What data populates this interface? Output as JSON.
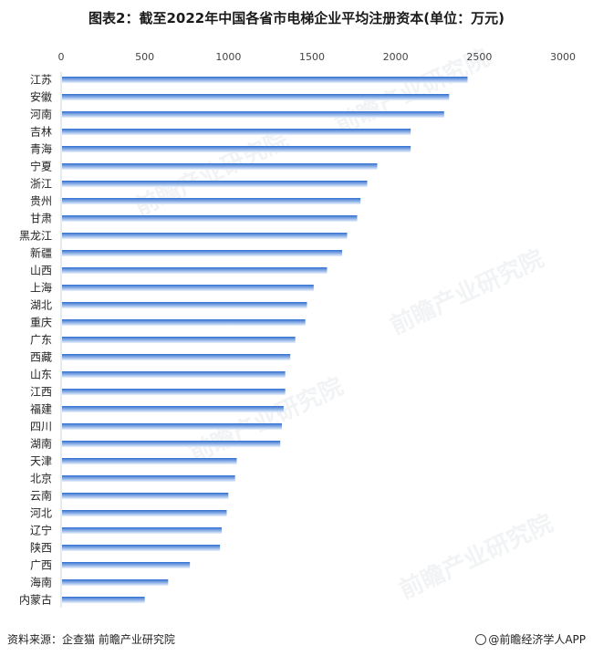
{
  "title": "图表2：截至2022年中国各省市电梯企业平均注册资本(单位：万元)",
  "source": "资料来源：企查猫 前瞻产业研究院",
  "brand": "@前瞻经济学人APP",
  "watermark": "前瞻产业研究院",
  "colors": {
    "bar_start": "#2f6fd0",
    "bar_end": "#eaf1fb",
    "axis_text": "#444444"
  },
  "chart_data": {
    "type": "bar",
    "orientation": "horizontal",
    "title": "图表2：截至2022年中国各省市电梯企业平均注册资本(单位：万元)",
    "xlabel": "",
    "ylabel": "",
    "xlim": [
      0,
      3000
    ],
    "xticks": [
      0,
      500,
      1000,
      1500,
      2000,
      2500,
      3000
    ],
    "x_axis_position": "top",
    "grid": false,
    "categories": [
      "江苏",
      "安徽",
      "河南",
      "吉林",
      "青海",
      "宁夏",
      "浙江",
      "贵州",
      "甘肃",
      "黑龙江",
      "新疆",
      "山西",
      "上海",
      "湖北",
      "重庆",
      "广东",
      "西藏",
      "山东",
      "江西",
      "福建",
      "四川",
      "湖南",
      "天津",
      "北京",
      "云南",
      "河北",
      "辽宁",
      "陕西",
      "广西",
      "海南",
      "内蒙古"
    ],
    "values": [
      2430,
      2320,
      2290,
      2090,
      2090,
      1890,
      1830,
      1790,
      1770,
      1710,
      1680,
      1590,
      1510,
      1470,
      1460,
      1400,
      1370,
      1340,
      1340,
      1330,
      1320,
      1310,
      1050,
      1040,
      1000,
      990,
      960,
      950,
      770,
      640,
      500
    ]
  }
}
